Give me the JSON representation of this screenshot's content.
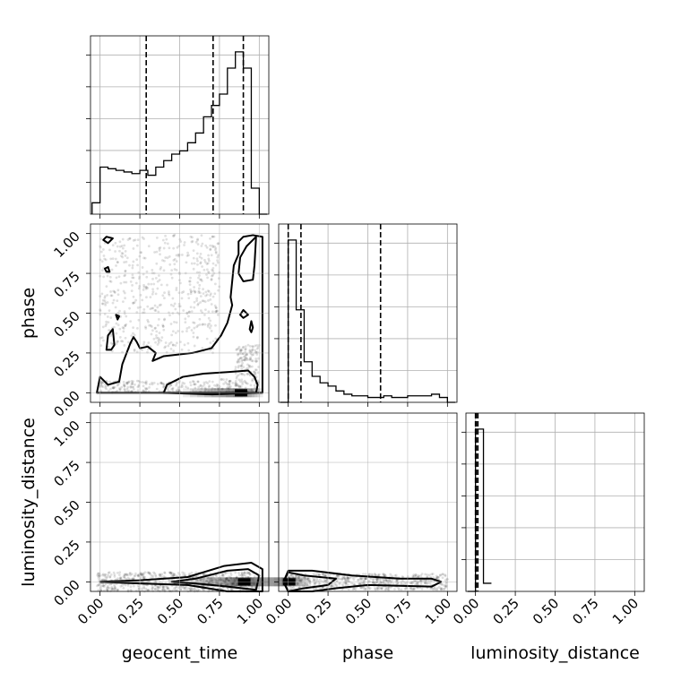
{
  "chart_data": {
    "type": "corner",
    "parameters": [
      "geocent_time",
      "phase",
      "luminosity_distance"
    ],
    "axes": {
      "geocent_time": {
        "label": "geocent_time",
        "range": [
          -0.06,
          1.06
        ],
        "ticks": [
          0.0,
          0.25,
          0.5,
          0.75,
          1.0
        ],
        "tick_labels": [
          "0.00",
          "0.25",
          "0.50",
          "0.75",
          "1.00"
        ]
      },
      "phase": {
        "label": "phase",
        "range": [
          -0.06,
          1.06
        ],
        "ticks": [
          0.0,
          0.25,
          0.5,
          0.75,
          1.0
        ],
        "tick_labels": [
          "0.00",
          "0.25",
          "0.50",
          "0.75",
          "1.00"
        ]
      },
      "luminosity_distance": {
        "label": "luminosity_distance",
        "range": [
          -0.06,
          1.06
        ],
        "ticks": [
          0.0,
          0.25,
          0.5,
          0.75,
          1.0
        ],
        "tick_labels": [
          "0.00",
          "0.25",
          "0.50",
          "0.75",
          "1.00"
        ]
      }
    },
    "histograms": [
      {
        "parameter": "geocent_time",
        "bin_edges": [
          -0.05,
          0.0,
          0.05,
          0.1,
          0.15,
          0.2,
          0.25,
          0.3,
          0.35,
          0.4,
          0.45,
          0.5,
          0.55,
          0.6,
          0.65,
          0.7,
          0.75,
          0.8,
          0.85,
          0.9,
          0.95,
          1.0,
          1.05
        ],
        "counts": [
          0.07,
          0.29,
          0.28,
          0.27,
          0.26,
          0.25,
          0.27,
          0.24,
          0.29,
          0.33,
          0.37,
          0.39,
          0.44,
          0.5,
          0.6,
          0.67,
          0.74,
          0.9,
          1.0,
          0.9,
          0.16,
          0.0
        ],
        "quantiles": [
          0.29,
          0.71,
          0.9
        ]
      },
      {
        "parameter": "phase",
        "bin_edges": [
          -0.05,
          0.0,
          0.05,
          0.1,
          0.15,
          0.2,
          0.25,
          0.3,
          0.35,
          0.4,
          0.45,
          0.5,
          0.55,
          0.6,
          0.65,
          0.7,
          0.75,
          0.8,
          0.85,
          0.9,
          0.95,
          1.0,
          1.05
        ],
        "counts": [
          0.0,
          1.0,
          0.57,
          0.25,
          0.16,
          0.12,
          0.1,
          0.07,
          0.05,
          0.04,
          0.04,
          0.03,
          0.03,
          0.04,
          0.03,
          0.03,
          0.04,
          0.04,
          0.04,
          0.05,
          0.03,
          0.0
        ],
        "quantiles": [
          0.0,
          0.08,
          0.58
        ]
      },
      {
        "parameter": "luminosity_distance",
        "bin_edges": [
          -0.05,
          0.0,
          0.05,
          0.1
        ],
        "counts": [
          0.0,
          1.0,
          0.05
        ],
        "quantiles": [
          0.0,
          0.005,
          0.015
        ]
      }
    ],
    "contour_panels": [
      {
        "x": "geocent_time",
        "y": "phase",
        "contours": [
          [
            [
              0.92,
              0.92
            ],
            [
              0.88,
              0.85
            ],
            [
              0.87,
              0.75
            ],
            [
              0.9,
              0.7
            ],
            [
              0.96,
              0.71
            ],
            [
              0.97,
              0.8
            ],
            [
              0.98,
              0.98
            ],
            [
              0.92,
              0.92
            ]
          ],
          [
            [
              -0.02,
              0.0
            ],
            [
              0.0,
              0.1
            ],
            [
              0.05,
              0.05
            ],
            [
              0.12,
              0.07
            ],
            [
              0.14,
              0.18
            ],
            [
              0.19,
              0.31
            ],
            [
              0.21,
              0.35
            ],
            [
              0.23,
              0.32
            ],
            [
              0.25,
              0.28
            ],
            [
              0.3,
              0.29
            ],
            [
              0.35,
              0.25
            ],
            [
              0.33,
              0.2
            ],
            [
              0.4,
              0.23
            ],
            [
              0.58,
              0.25
            ],
            [
              0.7,
              0.28
            ],
            [
              0.76,
              0.36
            ],
            [
              0.8,
              0.44
            ],
            [
              0.83,
              0.55
            ],
            [
              0.82,
              0.6
            ],
            [
              0.84,
              0.8
            ],
            [
              0.87,
              0.87
            ],
            [
              0.87,
              0.95
            ],
            [
              0.9,
              0.98
            ],
            [
              0.96,
              0.99
            ],
            [
              1.02,
              0.98
            ],
            [
              1.02,
              0.0
            ],
            [
              -0.02,
              0.0
            ]
          ],
          [
            [
              0.4,
              0.0
            ],
            [
              0.42,
              0.05
            ],
            [
              0.52,
              0.1
            ],
            [
              0.65,
              0.12
            ],
            [
              0.8,
              0.13
            ],
            [
              0.93,
              0.14
            ],
            [
              0.97,
              0.1
            ],
            [
              0.99,
              0.05
            ],
            [
              0.98,
              0.0
            ],
            [
              0.7,
              -0.01
            ],
            [
              0.4,
              0.0
            ]
          ],
          [
            [
              0.02,
              0.96
            ],
            [
              0.04,
              0.98
            ],
            [
              0.08,
              0.97
            ],
            [
              0.05,
              0.94
            ],
            [
              0.02,
              0.96
            ]
          ],
          [
            [
              0.03,
              0.78
            ],
            [
              0.05,
              0.79
            ],
            [
              0.06,
              0.76
            ],
            [
              0.04,
              0.76
            ],
            [
              0.03,
              0.78
            ]
          ],
          [
            [
              0.1,
              0.49
            ],
            [
              0.12,
              0.48
            ],
            [
              0.11,
              0.46
            ],
            [
              0.1,
              0.49
            ]
          ],
          [
            [
              0.04,
              0.27
            ],
            [
              0.05,
              0.36
            ],
            [
              0.08,
              0.4
            ],
            [
              0.09,
              0.3
            ],
            [
              0.07,
              0.27
            ],
            [
              0.04,
              0.27
            ]
          ],
          [
            [
              0.88,
              0.49
            ],
            [
              0.9,
              0.52
            ],
            [
              0.93,
              0.49
            ],
            [
              0.9,
              0.47
            ],
            [
              0.88,
              0.49
            ]
          ],
          [
            [
              0.94,
              0.4
            ],
            [
              0.95,
              0.45
            ],
            [
              0.96,
              0.41
            ],
            [
              0.95,
              0.38
            ],
            [
              0.94,
              0.4
            ]
          ]
        ],
        "peak": [
          0.88,
          0.0
        ]
      },
      {
        "x": "geocent_time",
        "y": "luminosity_distance",
        "contours": [
          [
            [
              0.45,
              0.0
            ],
            [
              0.6,
              0.02
            ],
            [
              0.8,
              0.07
            ],
            [
              0.93,
              0.08
            ],
            [
              1.0,
              0.04
            ],
            [
              0.98,
              -0.05
            ],
            [
              0.8,
              -0.03
            ],
            [
              0.6,
              -0.01
            ],
            [
              0.45,
              0.0
            ]
          ],
          [
            [
              0.0,
              0.0
            ],
            [
              0.25,
              0.01
            ],
            [
              0.55,
              0.03
            ],
            [
              0.78,
              0.1
            ],
            [
              0.95,
              0.12
            ],
            [
              1.02,
              0.08
            ],
            [
              1.02,
              -0.06
            ],
            [
              0.8,
              -0.06
            ],
            [
              0.55,
              -0.02
            ],
            [
              0.25,
              -0.01
            ],
            [
              0.0,
              0.0
            ]
          ]
        ],
        "peak": [
          0.9,
          0.0
        ]
      },
      {
        "x": "phase",
        "y": "luminosity_distance",
        "contours": [
          [
            [
              -0.03,
              0.0
            ],
            [
              0.0,
              0.06
            ],
            [
              0.1,
              0.04
            ],
            [
              0.3,
              0.02
            ],
            [
              0.25,
              -0.02
            ],
            [
              0.1,
              -0.04
            ],
            [
              0.0,
              -0.06
            ],
            [
              -0.03,
              0.0
            ]
          ],
          [
            [
              -0.03,
              0.0
            ],
            [
              0.0,
              0.07
            ],
            [
              0.15,
              0.07
            ],
            [
              0.4,
              0.04
            ],
            [
              0.7,
              0.02
            ],
            [
              0.9,
              0.02
            ],
            [
              0.96,
              0.0
            ],
            [
              0.9,
              -0.03
            ],
            [
              0.5,
              -0.02
            ],
            [
              0.3,
              -0.04
            ],
            [
              0.15,
              -0.06
            ],
            [
              0.0,
              -0.06
            ],
            [
              -0.03,
              0.0
            ]
          ]
        ],
        "peak": [
          0.0,
          0.0
        ]
      }
    ],
    "grid": true
  }
}
